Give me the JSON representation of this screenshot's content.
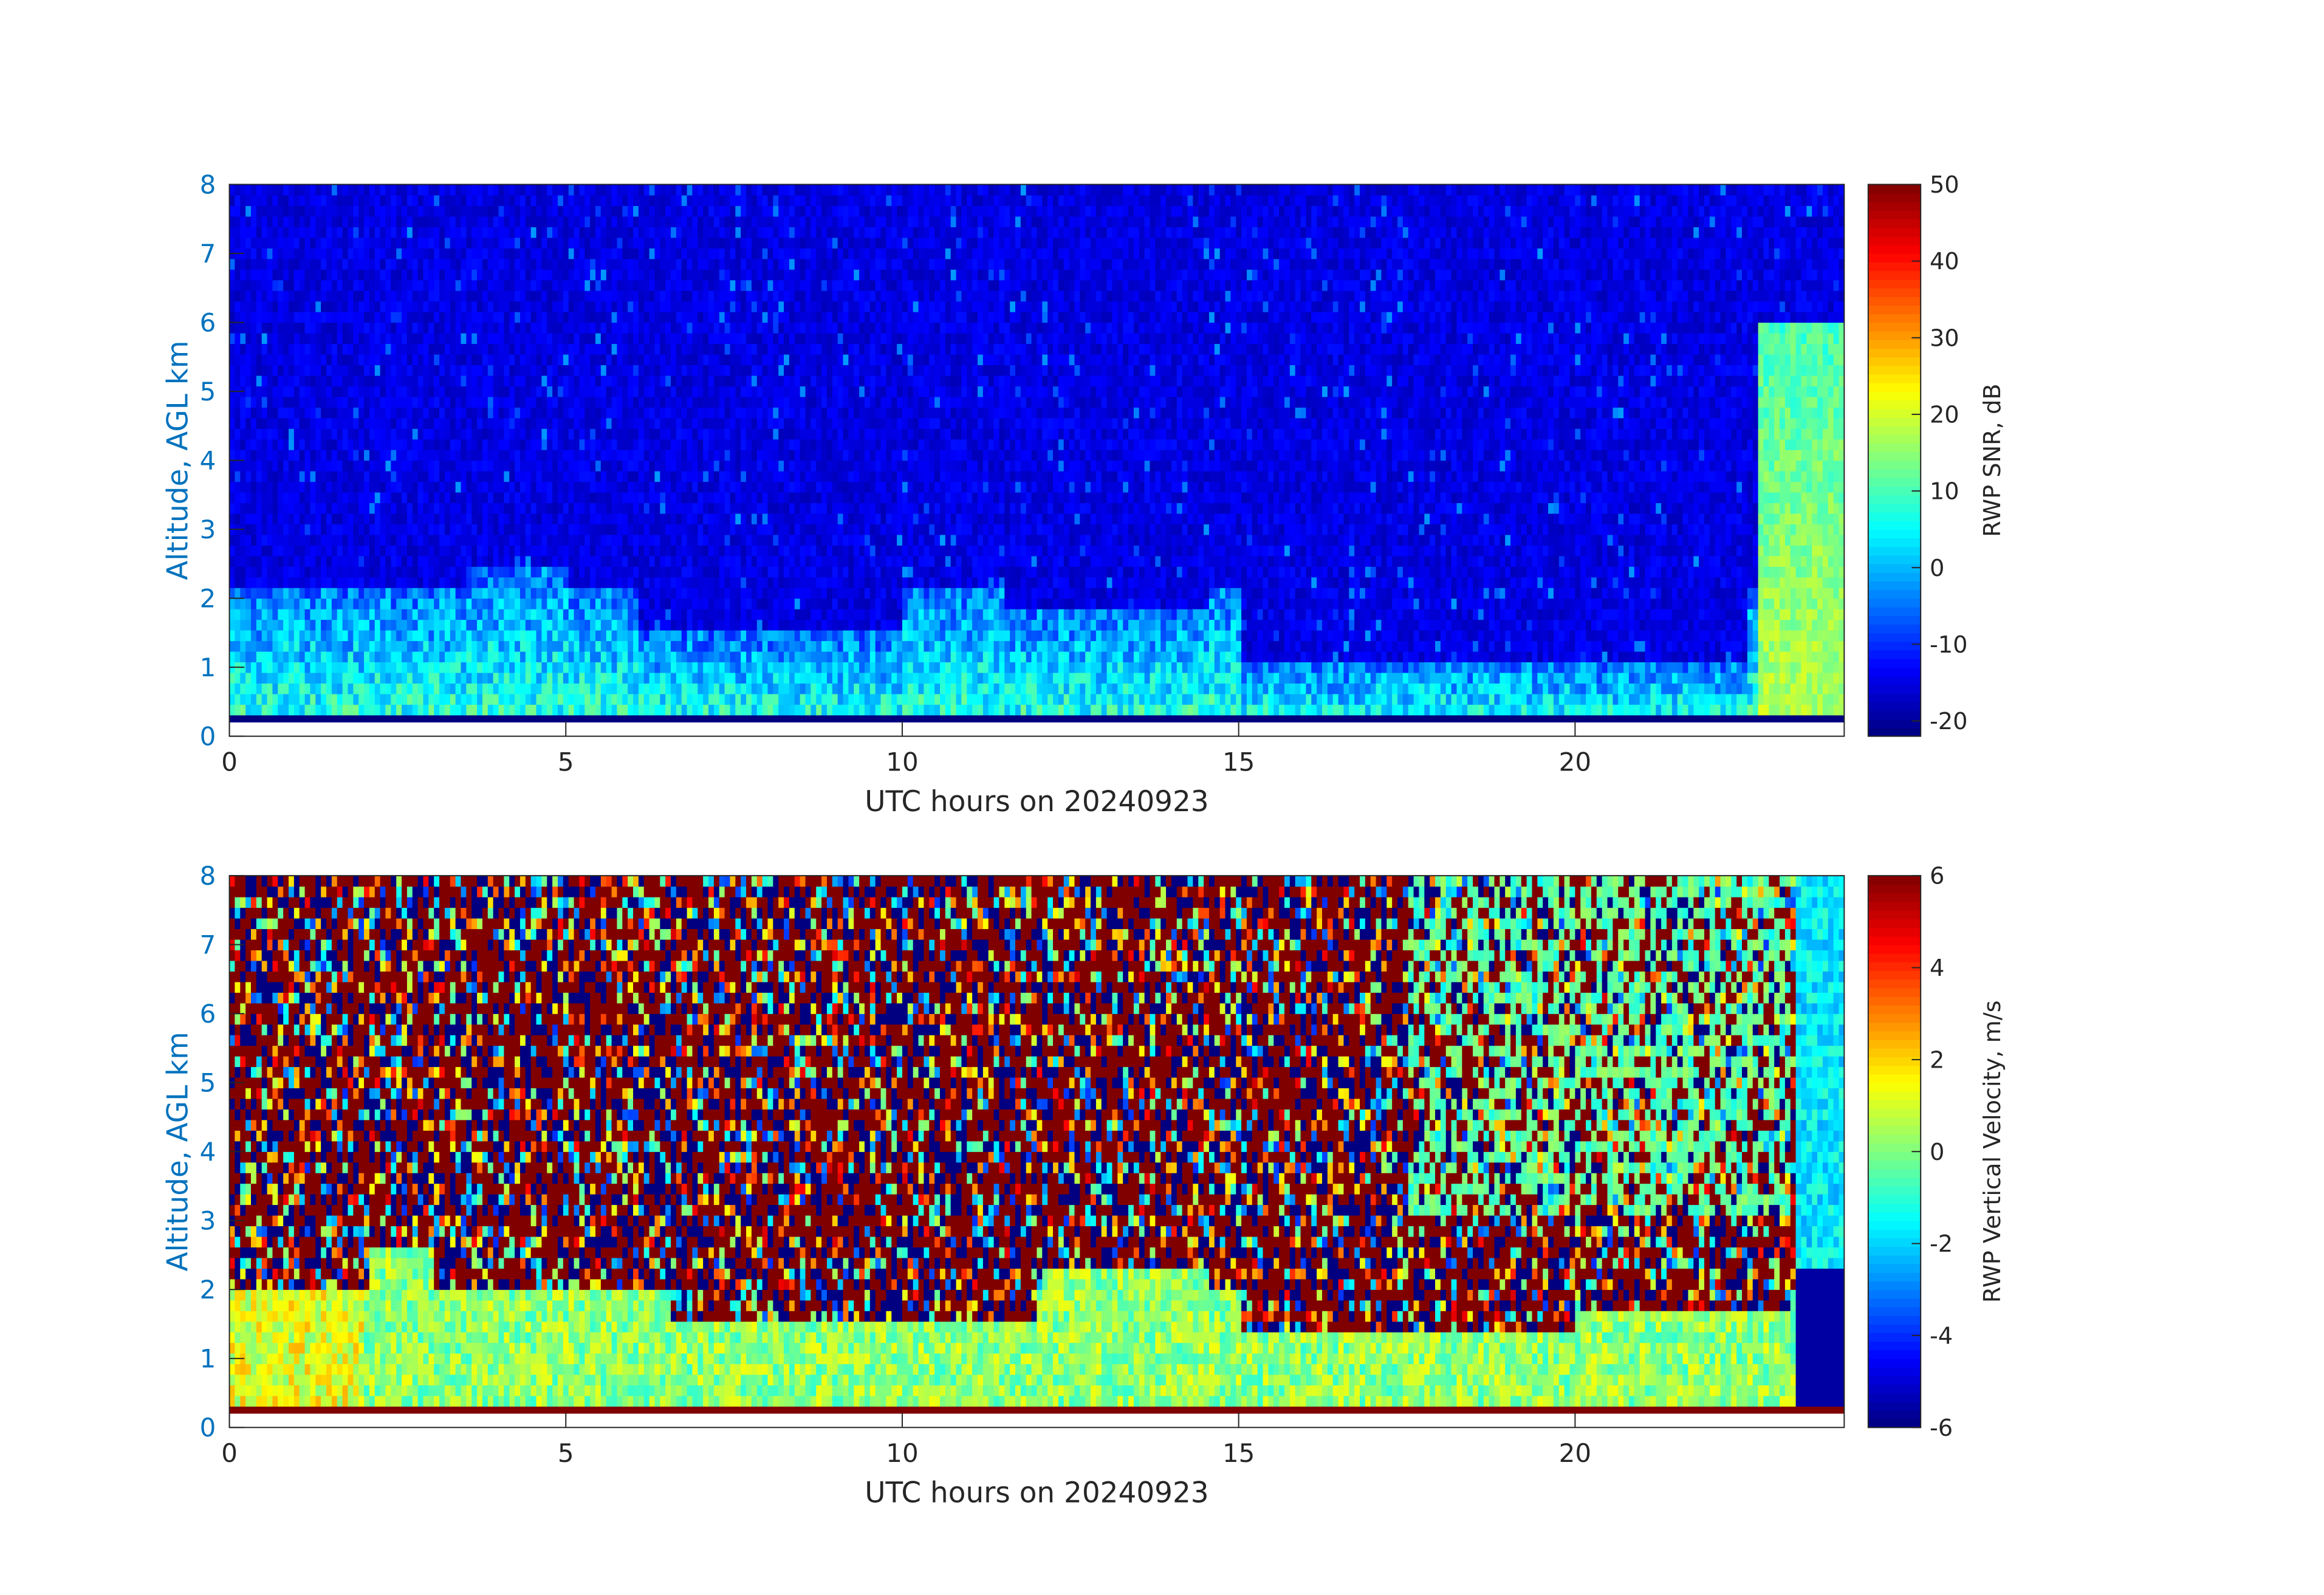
{
  "chart_data": [
    {
      "type": "heatmap",
      "x_label": "UTC hours on 20240923",
      "y_label": "Altitude, AGL km",
      "colorbar_label": "RWP SNR, dB",
      "x_range": [
        0,
        24
      ],
      "y_range": [
        0,
        8
      ],
      "x_ticks": [
        0,
        5,
        10,
        15,
        20
      ],
      "y_ticks": [
        0,
        1,
        2,
        3,
        4,
        5,
        6,
        7,
        8
      ],
      "colorbar_range": [
        -22,
        50
      ],
      "colorbar_ticks": [
        50,
        40,
        30,
        20,
        10,
        0,
        -10,
        -20
      ],
      "colormap": "jet",
      "data_min_altitude_km": 0.2,
      "grid": false
    },
    {
      "type": "heatmap",
      "x_label": "UTC hours on 20240923",
      "y_label": "Altitude, AGL km",
      "colorbar_label": "RWP Vertical Velocity, m/s",
      "x_range": [
        0,
        24
      ],
      "y_range": [
        0,
        8
      ],
      "x_ticks": [
        0,
        5,
        10,
        15,
        20
      ],
      "y_ticks": [
        0,
        1,
        2,
        3,
        4,
        5,
        6,
        7,
        8
      ],
      "colorbar_range": [
        -6,
        6
      ],
      "colorbar_ticks": [
        6,
        4,
        2,
        0,
        -2,
        -4,
        -6
      ],
      "colormap": "jet",
      "data_min_altitude_km": 0.2,
      "grid": false
    }
  ],
  "colors": {
    "y_axis_text": "#0072BD",
    "x_axis_text": "#262626",
    "axes": "#262626"
  }
}
